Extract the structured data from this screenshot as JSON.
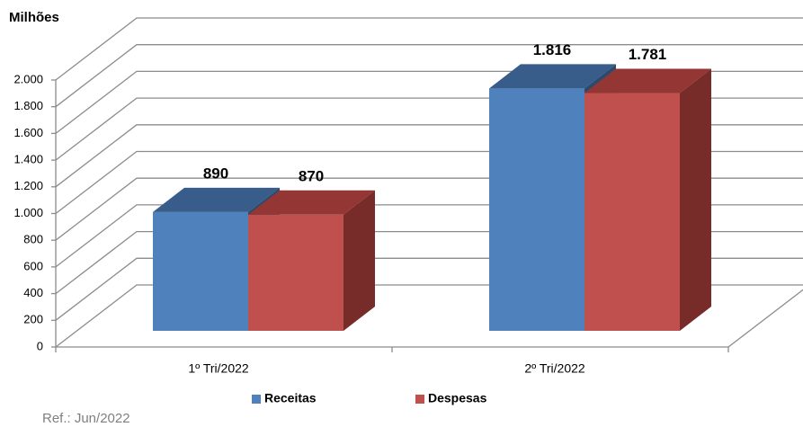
{
  "chart_data": {
    "type": "bar3d",
    "y_axis_label": "Milhões",
    "note": "Ref.: Jun/2022",
    "categories": [
      "1º Tri/2022",
      "2º Tri/2022"
    ],
    "series": [
      {
        "name": "Receitas",
        "color": "#4f81bd",
        "top_color": "#385d8a",
        "side_color": "#2c4a6e",
        "values": [
          890,
          1816
        ],
        "value_labels": [
          "890",
          "1.816"
        ]
      },
      {
        "name": "Despesas",
        "color": "#c0504d",
        "top_color": "#943634",
        "side_color": "#772c2a",
        "values": [
          870,
          1781
        ],
        "value_labels": [
          "870",
          "1.781"
        ]
      }
    ],
    "ylim": [
      0,
      2000
    ],
    "yticks": [
      0,
      200,
      400,
      600,
      800,
      {
        "value": 1000,
        "label": "1.000"
      },
      {
        "value": 1200,
        "label": "1.200"
      },
      {
        "value": 1400,
        "label": "1.400"
      },
      {
        "value": 1600,
        "label": "1.600"
      },
      {
        "value": 1800,
        "label": "1.800"
      },
      {
        "value": 2000,
        "label": "2.000"
      }
    ],
    "grid": true,
    "legend": "bottom"
  }
}
